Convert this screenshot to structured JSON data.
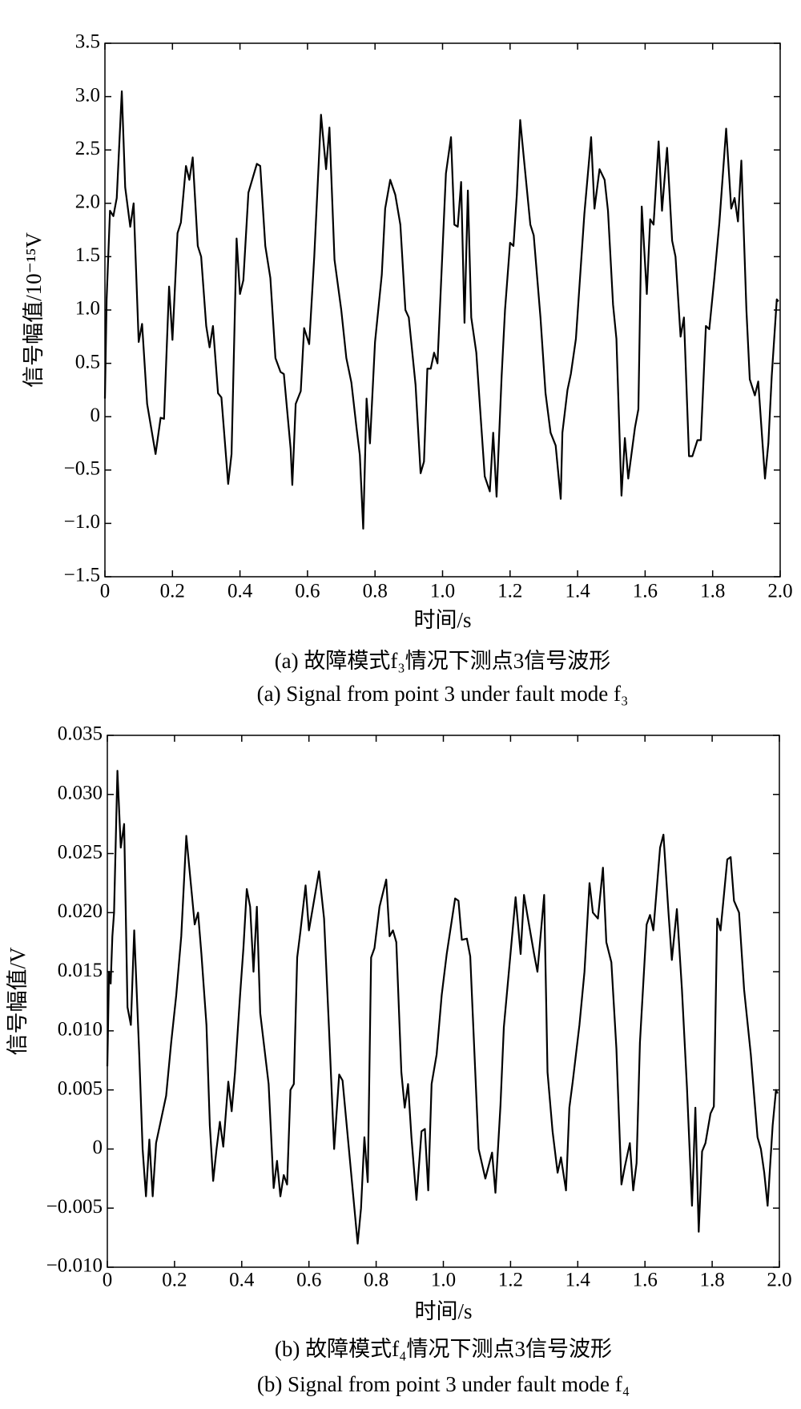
{
  "chart_data": [
    {
      "type": "line",
      "color": "#000000",
      "y_label": "信号幅值/10⁻¹⁵V",
      "x_label": "时间/s",
      "caption_cn": "(a) 故障模式f₃情况下测点3信号波形",
      "caption_en": "(a) Signal from point 3 under fault mode f₃",
      "xlim": [
        0,
        2
      ],
      "ylim": [
        -1.5,
        3.5
      ],
      "xticks": [
        0,
        0.2,
        0.4,
        0.6,
        0.8,
        {
          "value": 1,
          "label": "1.0"
        },
        1.2,
        1.4,
        1.6,
        1.8,
        {
          "value": 2,
          "label": "2.0"
        }
      ],
      "yticks": [
        {
          "value": -1.5,
          "label": "−1.5"
        },
        {
          "value": -1,
          "label": "−1.0"
        },
        {
          "value": -0.5,
          "label": "−0.5"
        },
        0,
        0.5,
        {
          "value": 1,
          "label": "1.0"
        },
        1.5,
        {
          "value": 2,
          "label": "2.0"
        },
        2.5,
        {
          "value": 3,
          "label": "3.0"
        },
        3.5
      ],
      "x": [
        0,
        0.005,
        0.015,
        0.025,
        0.035,
        0.05,
        0.06,
        0.075,
        0.085,
        0.1,
        0.11,
        0.125,
        0.15,
        0.165,
        0.175,
        0.19,
        0.2,
        0.215,
        0.225,
        0.24,
        0.25,
        0.26,
        0.275,
        0.285,
        0.3,
        0.31,
        0.32,
        0.335,
        0.345,
        0.365,
        0.375,
        0.39,
        0.4,
        0.41,
        0.425,
        0.45,
        0.46,
        0.475,
        0.49,
        0.505,
        0.52,
        0.53,
        0.55,
        0.555,
        0.565,
        0.58,
        0.59,
        0.605,
        0.62,
        0.64,
        0.655,
        0.665,
        0.68,
        0.7,
        0.715,
        0.73,
        0.745,
        0.755,
        0.765,
        0.775,
        0.785,
        0.8,
        0.82,
        0.83,
        0.845,
        0.86,
        0.875,
        0.89,
        0.9,
        0.92,
        0.935,
        0.945,
        0.955,
        0.965,
        0.975,
        0.985,
        1.01,
        1.025,
        1.035,
        1.045,
        1.055,
        1.065,
        1.075,
        1.085,
        1.1,
        1.115,
        1.125,
        1.14,
        1.15,
        1.16,
        1.175,
        1.185,
        1.2,
        1.21,
        1.22,
        1.23,
        1.24,
        1.26,
        1.27,
        1.29,
        1.305,
        1.32,
        1.335,
        1.35,
        1.355,
        1.37,
        1.38,
        1.395,
        1.405,
        1.42,
        1.44,
        1.45,
        1.465,
        1.48,
        1.49,
        1.505,
        1.515,
        1.53,
        1.54,
        1.55,
        1.57,
        1.58,
        1.59,
        1.605,
        1.615,
        1.625,
        1.64,
        1.65,
        1.665,
        1.68,
        1.69,
        1.705,
        1.715,
        1.73,
        1.74,
        1.755,
        1.765,
        1.78,
        1.79,
        1.805,
        1.82,
        1.84,
        1.855,
        1.865,
        1.875,
        1.885,
        1.9,
        1.91,
        1.925,
        1.935,
        1.955,
        1.965,
        1.975,
        1.99,
        1.995
      ],
      "values": [
        0.17,
        1.1,
        1.93,
        1.88,
        2.05,
        3.05,
        2.15,
        1.78,
        2.0,
        0.7,
        0.87,
        0.12,
        -0.35,
        -0.01,
        -0.02,
        1.22,
        0.72,
        1.72,
        1.82,
        2.35,
        2.22,
        2.43,
        1.6,
        1.5,
        0.85,
        0.65,
        0.85,
        0.22,
        0.18,
        -0.63,
        -0.35,
        1.67,
        1.15,
        1.28,
        2.1,
        2.37,
        2.35,
        1.6,
        1.3,
        0.55,
        0.42,
        0.4,
        -0.3,
        -0.64,
        0.12,
        0.24,
        0.83,
        0.68,
        1.5,
        2.83,
        2.32,
        2.71,
        1.47,
        1.0,
        0.55,
        0.32,
        -0.1,
        -0.36,
        -1.05,
        0.17,
        -0.25,
        0.7,
        1.33,
        1.95,
        2.22,
        2.08,
        1.8,
        1.0,
        0.93,
        0.3,
        -0.53,
        -0.42,
        0.45,
        0.45,
        0.6,
        0.5,
        2.28,
        2.62,
        1.8,
        1.78,
        2.2,
        0.88,
        2.12,
        0.93,
        0.6,
        -0.1,
        -0.56,
        -0.7,
        -0.15,
        -0.75,
        0.38,
        1.0,
        1.63,
        1.6,
        2.08,
        2.78,
        2.45,
        1.8,
        1.7,
        0.93,
        0.22,
        -0.15,
        -0.27,
        -0.77,
        -0.15,
        0.25,
        0.4,
        0.73,
        1.2,
        1.9,
        2.62,
        1.95,
        2.32,
        2.22,
        1.93,
        1.05,
        0.73,
        -0.74,
        -0.2,
        -0.58,
        -0.1,
        0.07,
        1.97,
        1.15,
        1.85,
        1.8,
        2.58,
        1.93,
        2.52,
        1.65,
        1.5,
        0.75,
        0.93,
        -0.37,
        -0.37,
        -0.22,
        -0.22,
        0.85,
        0.82,
        1.3,
        1.82,
        2.7,
        1.95,
        2.05,
        1.83,
        2.4,
        1.0,
        0.35,
        0.2,
        0.33,
        -0.58,
        -0.25,
        0.38,
        1.1,
        1.08
      ]
    },
    {
      "type": "line",
      "color": "#000000",
      "y_label": "信号幅值/V",
      "x_label": "时间/s",
      "caption_cn": "(b) 故障模式f₄情况下测点3信号波形",
      "caption_en": "(b) Signal from point 3 under fault mode f₄",
      "xlim": [
        0,
        2
      ],
      "ylim": [
        -0.01,
        0.035
      ],
      "xticks": [
        0,
        0.2,
        0.4,
        0.6,
        0.8,
        {
          "value": 1,
          "label": "1.0"
        },
        1.2,
        1.4,
        1.6,
        1.8,
        {
          "value": 2,
          "label": "2.0"
        }
      ],
      "yticks": [
        {
          "value": -0.01,
          "label": "−0.010"
        },
        {
          "value": -0.005,
          "label": "−0.005"
        },
        0,
        0.005,
        {
          "value": 0.01,
          "label": "0.010"
        },
        0.015,
        {
          "value": 0.02,
          "label": "0.020"
        },
        0.025,
        {
          "value": 0.03,
          "label": "0.030"
        },
        0.035
      ],
      "x": [
        0,
        0.005,
        0.01,
        0.015,
        0.02,
        0.03,
        0.04,
        0.05,
        0.06,
        0.07,
        0.08,
        0.095,
        0.105,
        0.115,
        0.125,
        0.135,
        0.145,
        0.16,
        0.175,
        0.19,
        0.205,
        0.22,
        0.235,
        0.245,
        0.26,
        0.27,
        0.28,
        0.295,
        0.305,
        0.315,
        0.325,
        0.335,
        0.345,
        0.36,
        0.37,
        0.38,
        0.395,
        0.405,
        0.415,
        0.425,
        0.435,
        0.445,
        0.455,
        0.48,
        0.495,
        0.505,
        0.515,
        0.525,
        0.535,
        0.545,
        0.555,
        0.565,
        0.575,
        0.59,
        0.6,
        0.615,
        0.63,
        0.645,
        0.66,
        0.675,
        0.69,
        0.7,
        0.745,
        0.755,
        0.765,
        0.775,
        0.785,
        0.795,
        0.81,
        0.83,
        0.84,
        0.85,
        0.86,
        0.875,
        0.885,
        0.895,
        0.905,
        0.92,
        0.935,
        0.945,
        0.955,
        0.965,
        0.98,
        0.995,
        1.01,
        1.035,
        1.045,
        1.055,
        1.07,
        1.08,
        1.095,
        1.105,
        1.125,
        1.145,
        1.155,
        1.17,
        1.18,
        1.195,
        1.215,
        1.23,
        1.24,
        1.25,
        1.27,
        1.28,
        1.3,
        1.31,
        1.325,
        1.34,
        1.35,
        1.365,
        1.375,
        1.385,
        1.405,
        1.42,
        1.435,
        1.445,
        1.46,
        1.475,
        1.485,
        1.5,
        1.515,
        1.53,
        1.54,
        1.555,
        1.565,
        1.575,
        1.585,
        1.605,
        1.615,
        1.625,
        1.645,
        1.655,
        1.67,
        1.68,
        1.695,
        1.71,
        1.725,
        1.74,
        1.75,
        1.76,
        1.77,
        1.78,
        1.795,
        1.805,
        1.815,
        1.825,
        1.845,
        1.855,
        1.865,
        1.88,
        1.895,
        1.915,
        1.935,
        1.945,
        1.955,
        1.965,
        1.98,
        1.99,
        1.995
      ],
      "values": [
        0.007,
        0.015,
        0.014,
        0.018,
        0.02,
        0.032,
        0.0255,
        0.0275,
        0.012,
        0.0105,
        0.0185,
        0.008,
        0,
        -0.004,
        0.0008,
        -0.004,
        0.0005,
        0.0025,
        0.0045,
        0.009,
        0.013,
        0.018,
        0.0265,
        0.0235,
        0.019,
        0.02,
        0.0165,
        0.0105,
        0.002,
        -0.0027,
        0,
        0.0023,
        0.0002,
        0.0057,
        0.0032,
        0.0065,
        0.013,
        0.017,
        0.022,
        0.0205,
        0.015,
        0.0205,
        0.0115,
        0.0055,
        -0.0033,
        -0.001,
        -0.004,
        -0.0022,
        -0.003,
        0.005,
        0.0055,
        0.0162,
        0.0185,
        0.0223,
        0.0185,
        0.021,
        0.0235,
        0.0195,
        0.01,
        0,
        0.0063,
        0.0058,
        -0.008,
        -0.005,
        0.001,
        -0.0028,
        0.0162,
        0.017,
        0.0205,
        0.0228,
        0.018,
        0.0185,
        0.0175,
        0.0065,
        0.0035,
        0.0055,
        0.001,
        -0.0043,
        0.0015,
        0.0017,
        -0.0035,
        0.0055,
        0.008,
        0.013,
        0.0165,
        0.0212,
        0.021,
        0.0177,
        0.0178,
        0.0163,
        0.0065,
        0,
        -0.0025,
        -0.0003,
        -0.0037,
        0.0037,
        0.0103,
        0.015,
        0.0213,
        0.0165,
        0.0215,
        0.0198,
        0.0165,
        0.015,
        0.0215,
        0.0065,
        0.0015,
        -0.002,
        -0.0007,
        -0.0035,
        0.0035,
        0.0057,
        0.0105,
        0.015,
        0.0225,
        0.02,
        0.0195,
        0.0238,
        0.0175,
        0.0158,
        0.0085,
        -0.003,
        -0.0015,
        0.0005,
        -0.0035,
        -0.0012,
        0.009,
        0.019,
        0.0198,
        0.0185,
        0.0255,
        0.0266,
        0.02,
        0.016,
        0.0203,
        0.0135,
        0.0052,
        -0.0048,
        0.0035,
        -0.007,
        -0.0002,
        0.0005,
        0.003,
        0.0036,
        0.0195,
        0.0185,
        0.0245,
        0.0247,
        0.021,
        0.02,
        0.0135,
        0.008,
        0.001,
        0,
        -0.002,
        -0.0048,
        0.002,
        0.005,
        0.0047
      ]
    }
  ]
}
